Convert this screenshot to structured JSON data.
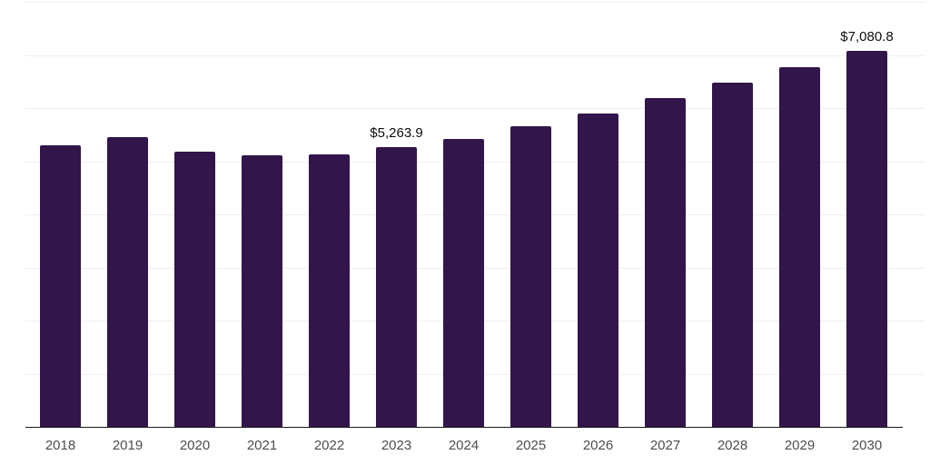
{
  "chart_data": {
    "type": "bar",
    "title": "",
    "xlabel": "",
    "ylabel": "",
    "categories": [
      "2018",
      "2019",
      "2020",
      "2021",
      "2022",
      "2023",
      "2024",
      "2025",
      "2026",
      "2027",
      "2028",
      "2029",
      "2030"
    ],
    "values": [
      5295,
      5445,
      5175,
      5115,
      5130,
      5263.9,
      5420,
      5650,
      5890,
      6180,
      6480,
      6765,
      7080.8
    ],
    "bar_labels": [
      "",
      "",
      "",
      "",
      "",
      "$5,263.9",
      "",
      "",
      "",
      "",
      "",
      "",
      "$7,080.8"
    ],
    "ylim": [
      0,
      8000
    ],
    "grid_step": 1000,
    "grid": true,
    "legend": false,
    "colors": {
      "bar": "#32154a",
      "axis_line": "#1a1a1a",
      "tick_label": "#4d4d4d",
      "data_label": "#0d0d0d",
      "gridline": "#efefef",
      "background": "#ffffff"
    }
  }
}
